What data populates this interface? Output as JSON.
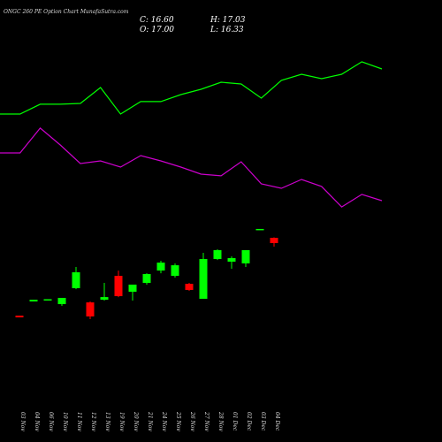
{
  "chart_data": [
    {
      "type": "candlestick",
      "title": "ONGC 260 PE Option Chart MunafaSutra.com",
      "info": [
        "C: 16.60",
        "H: 17.03",
        "O: 17.00",
        "L: 16.33"
      ],
      "categories": [
        "03 Nov",
        "04 Nov",
        "06 Nov",
        "10 Nov",
        "11 Nov",
        "12 Nov",
        "13 Nov",
        "19 Nov",
        "20 Nov",
        "21 Nov",
        "24 Nov",
        "25 Nov",
        "26 Nov",
        "27 Nov",
        "28 Nov",
        "01 Dec",
        "02 Dec",
        "03 Dec",
        "04 Dec"
      ],
      "open": [
        11.13,
        12.2,
        12.3,
        12.0,
        13.2,
        12.13,
        12.33,
        14.13,
        12.93,
        13.6,
        14.53,
        14.13,
        13.53,
        12.4,
        15.4,
        15.2,
        15.07,
        17.6,
        17.0
      ],
      "high": [
        11.13,
        12.33,
        12.37,
        12.47,
        14.8,
        12.2,
        13.6,
        14.53,
        13.47,
        14.33,
        15.27,
        15.07,
        13.6,
        15.87,
        16.13,
        15.6,
        16.07,
        17.67,
        17.03
      ],
      "low": [
        11.0,
        12.2,
        12.3,
        11.87,
        13.13,
        10.87,
        12.27,
        12.53,
        12.27,
        13.47,
        14.33,
        14.0,
        13.0,
        12.4,
        15.33,
        14.67,
        14.8,
        17.6,
        16.33
      ],
      "close": [
        11.0,
        12.33,
        12.37,
        12.47,
        14.4,
        11.07,
        12.53,
        12.6,
        13.47,
        14.27,
        15.13,
        14.93,
        13.07,
        15.4,
        16.07,
        15.47,
        16.07,
        17.67,
        16.6
      ],
      "up_color": "#00ff00",
      "down_color": "#ff0000",
      "ylim": [
        4.27,
        34.93
      ]
    },
    {
      "type": "line",
      "categories": [
        null,
        null,
        null,
        null,
        null,
        null,
        null,
        null,
        null,
        null,
        null,
        null,
        null,
        null,
        null,
        null,
        null,
        null,
        null,
        null
      ],
      "series": [
        {
          "color": "#00ff00",
          "values": [
            26.33,
            26.33,
            27.07,
            27.07,
            27.13,
            28.33,
            26.33,
            27.27,
            27.27,
            27.8,
            28.2,
            28.73,
            28.6,
            27.53,
            28.87,
            29.33,
            29.0,
            29.33,
            30.27,
            29.73
          ]
        },
        {
          "color": "#cc00cc",
          "values": [
            23.4,
            23.4,
            25.27,
            24.0,
            22.6,
            22.8,
            22.33,
            23.2,
            22.8,
            22.33,
            21.8,
            21.67,
            22.73,
            21.07,
            20.73,
            21.4,
            20.87,
            19.33,
            20.27,
            19.8
          ]
        }
      ],
      "ylim": [
        4.27,
        34.93
      ]
    }
  ]
}
